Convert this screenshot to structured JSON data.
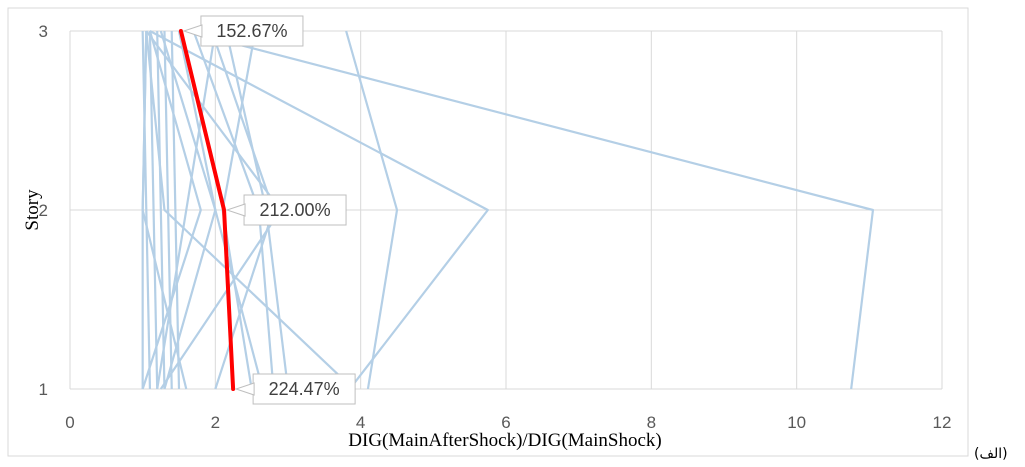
{
  "chart_data": {
    "type": "line",
    "orientation": "horizontal-profile",
    "xlabel": "DIG(MainAfterShock)/DIG(MainShock)",
    "ylabel": "Story",
    "xlim": [
      0,
      12
    ],
    "ylim": [
      1,
      3
    ],
    "x_ticks": [
      "0",
      "2",
      "4",
      "6",
      "8",
      "10",
      "12"
    ],
    "y_ticks": [
      "1",
      "2",
      "3"
    ],
    "grid": true,
    "panel_label": "(الف)",
    "colors": {
      "background_series": "#b4cfe6",
      "highlight_series": "#ff0000"
    },
    "stories": [
      1,
      2,
      3
    ],
    "series": [
      {
        "x": [
          1.0,
          1.0,
          1.05
        ]
      },
      {
        "x": [
          1.1,
          1.05,
          1.0
        ]
      },
      {
        "x": [
          1.2,
          1.15,
          1.1
        ]
      },
      {
        "x": [
          1.3,
          1.25,
          1.2
        ]
      },
      {
        "x": [
          1.4,
          1.35,
          1.3
        ]
      },
      {
        "x": [
          1.5,
          1.45,
          1.4
        ]
      },
      {
        "x": [
          1.0,
          1.8,
          1.1
        ]
      },
      {
        "x": [
          1.6,
          1.0,
          1.05
        ]
      },
      {
        "x": [
          1.3,
          2.0,
          1.5
        ]
      },
      {
        "x": [
          1.2,
          1.6,
          2.0
        ]
      },
      {
        "x": [
          2.65,
          2.0,
          1.25
        ]
      },
      {
        "x": [
          2.8,
          2.6,
          1.7
        ]
      },
      {
        "x": [
          2.0,
          2.8,
          1.95
        ]
      },
      {
        "x": [
          3.0,
          2.7,
          2.15
        ]
      },
      {
        "x": [
          2.5,
          2.1,
          2.55
        ]
      },
      {
        "x": [
          1.25,
          2.9,
          1.05
        ]
      },
      {
        "x": [
          3.9,
          1.3,
          1.05
        ]
      },
      {
        "x": [
          4.1,
          4.5,
          3.8
        ]
      },
      {
        "x": [
          3.85,
          5.75,
          1.1
        ]
      },
      {
        "x": [
          10.75,
          11.05,
          1.6
        ]
      }
    ],
    "highlight": {
      "x": [
        2.2447,
        2.12,
        1.5267
      ],
      "labels": [
        "224.47%",
        "212.00%",
        "152.67%"
      ]
    }
  }
}
